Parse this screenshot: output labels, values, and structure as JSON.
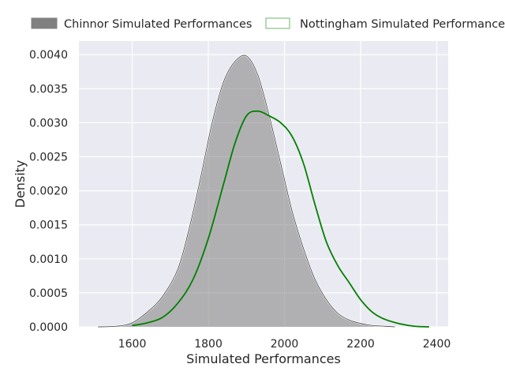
{
  "chart_data": {
    "type": "area",
    "title": "",
    "xlabel": "Simulated Performances",
    "ylabel": "Density",
    "xlim": [
      1460,
      2430
    ],
    "ylim": [
      0,
      0.0042
    ],
    "x_ticks": [
      1600,
      1800,
      2000,
      2200,
      2400
    ],
    "x_tick_labels": [
      "1600",
      "1800",
      "2000",
      "2200",
      "2400"
    ],
    "y_ticks": [
      0,
      0.0005,
      0.001,
      0.0015,
      0.002,
      0.0025,
      0.003,
      0.0035,
      0.004
    ],
    "y_tick_labels": [
      "0.0000",
      "0.0005",
      "0.0010",
      "0.0015",
      "0.0020",
      "0.0025",
      "0.0030",
      "0.0035",
      "0.0040"
    ],
    "grid": true,
    "legend_position": "top",
    "series": [
      {
        "name": "Chinnor Simulated Performances",
        "style": "filled",
        "color": "#808080",
        "x": [
          1510,
          1560,
          1600,
          1640,
          1680,
          1720,
          1750,
          1780,
          1810,
          1840,
          1870,
          1900,
          1930,
          1960,
          1990,
          2020,
          2050,
          2080,
          2110,
          2140,
          2170,
          2200,
          2230,
          2260,
          2290
        ],
        "y": [
          0.0,
          1e-05,
          6e-05,
          0.00022,
          0.00045,
          0.00085,
          0.00145,
          0.0022,
          0.003,
          0.0036,
          0.0039,
          0.00398,
          0.0037,
          0.0031,
          0.0024,
          0.0017,
          0.00115,
          0.0007,
          0.0004,
          0.0002,
          0.0001,
          5e-05,
          2e-05,
          1e-05,
          0.0
        ]
      },
      {
        "name": "Nottingham Simulated Performances",
        "style": "line",
        "color": "#008000",
        "x": [
          1600,
          1640,
          1680,
          1720,
          1760,
          1800,
          1840,
          1870,
          1900,
          1930,
          1960,
          1990,
          2020,
          2050,
          2080,
          2110,
          2140,
          2170,
          2200,
          2230,
          2260,
          2300,
          2340,
          2380
        ],
        "y": [
          2e-05,
          6e-05,
          0.00014,
          0.00035,
          0.0007,
          0.0013,
          0.0021,
          0.0027,
          0.0031,
          0.00317,
          0.0031,
          0.003,
          0.0028,
          0.0024,
          0.0018,
          0.00125,
          0.0009,
          0.00065,
          0.0004,
          0.00022,
          0.00012,
          5e-05,
          1e-05,
          0.0
        ]
      }
    ]
  }
}
